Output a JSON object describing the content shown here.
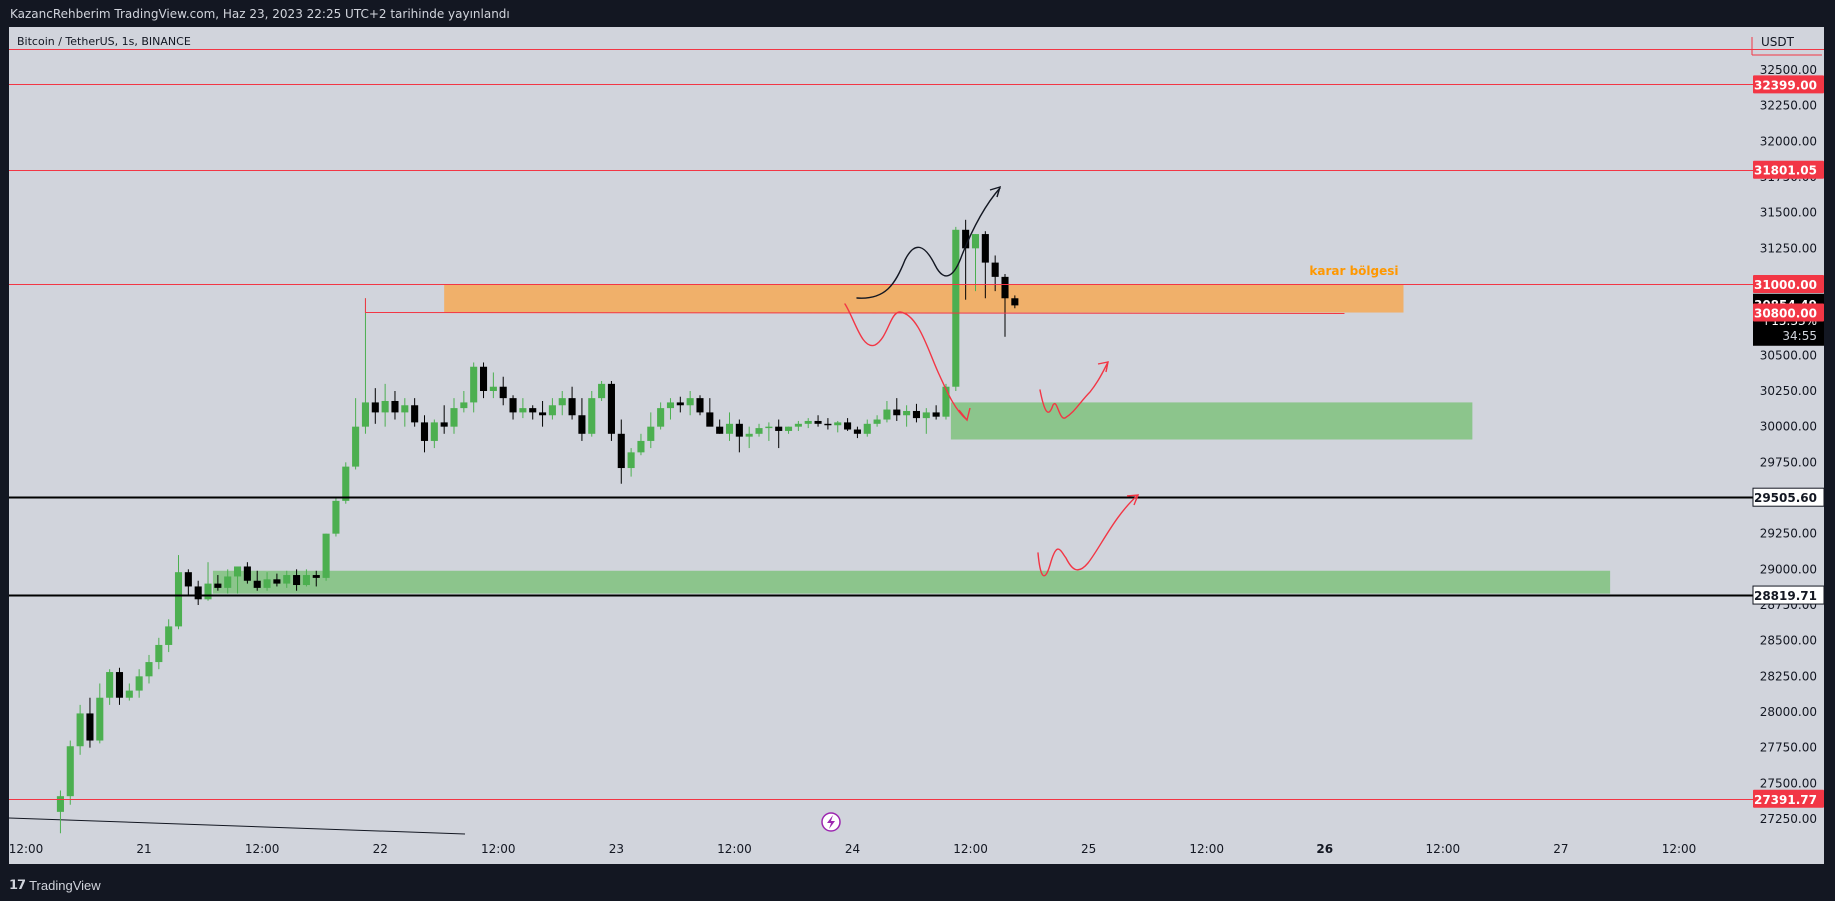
{
  "header": {
    "publish_line": "KazancRehberim TradingView.com, Haz 23, 2023 22:25 UTC+2 tarihinde yayınlandı"
  },
  "footer": {
    "brand": "TradingView"
  },
  "colors": {
    "background": "#d1d4dc",
    "frame": "#131722",
    "up": "#4caf50",
    "down": "#000000",
    "resistance": "#f23645",
    "support": "#000000",
    "orange_zone": "#f0b06a",
    "green_zone": "#8cc58c",
    "zone_label": "#ff9800"
  },
  "chart_data": {
    "type": "candlestick",
    "title": "Bitcoin / TetherUS, 1s, BINANCE",
    "currency": "USDT",
    "ylim": [
      27150,
      32700
    ],
    "y_ticks": [
      27250,
      27500,
      27750,
      28000,
      28250,
      28500,
      28750,
      29000,
      29250,
      29500,
      29750,
      30000,
      30250,
      30500,
      30750,
      31000,
      31250,
      31500,
      31750,
      32000,
      32250,
      32500
    ],
    "y_tick_labels": [
      "27250.00",
      "27500.00",
      "27750.00",
      "28000.00",
      "28250.00",
      "28500.00",
      "28750.00",
      "29000.00",
      "29250.00",
      "29500.00",
      "29750.00",
      "30000.00",
      "30250.00",
      "30500.00",
      "30750.00",
      "31000.00",
      "31250.00",
      "31500.00",
      "31750.00",
      "32000.00",
      "32250.00",
      "32500.00"
    ],
    "x_tick_labels": [
      "12:00",
      "21",
      "12:00",
      "22",
      "12:00",
      "23",
      "12:00",
      "24",
      "12:00",
      "25",
      "12:00",
      "26",
      "12:00",
      "27",
      "12:00"
    ],
    "x_ticks_hours": [
      12,
      24,
      36,
      48,
      60,
      72,
      84,
      96,
      108,
      120,
      132,
      144,
      156,
      168,
      180
    ],
    "x_range_hours": [
      12,
      186
    ],
    "candle_interval_hours": 1,
    "first_candle_hour": 15.5,
    "candles": [
      [
        27300,
        27450,
        27150,
        27410
      ],
      [
        27410,
        27800,
        27350,
        27760
      ],
      [
        27760,
        28050,
        27700,
        27990
      ],
      [
        27990,
        28100,
        27750,
        27800
      ],
      [
        27800,
        28200,
        27780,
        28100
      ],
      [
        28100,
        28300,
        28050,
        28280
      ],
      [
        28280,
        28310,
        28050,
        28100
      ],
      [
        28100,
        28200,
        28080,
        28150
      ],
      [
        28150,
        28300,
        28100,
        28250
      ],
      [
        28250,
        28400,
        28200,
        28350
      ],
      [
        28350,
        28520,
        28300,
        28470
      ],
      [
        28470,
        28650,
        28420,
        28600
      ],
      [
        28600,
        29100,
        28580,
        28980
      ],
      [
        28980,
        29000,
        28820,
        28880
      ],
      [
        28880,
        28920,
        28750,
        28790
      ],
      [
        28790,
        29050,
        28780,
        28900
      ],
      [
        28900,
        28960,
        28850,
        28870
      ],
      [
        28870,
        29000,
        28830,
        28950
      ],
      [
        28950,
        29000,
        28830,
        29020
      ],
      [
        29020,
        29050,
        28900,
        28920
      ],
      [
        28920,
        28990,
        28850,
        28870
      ],
      [
        28870,
        28980,
        28850,
        28930
      ],
      [
        28930,
        28970,
        28880,
        28900
      ],
      [
        28900,
        28990,
        28870,
        28960
      ],
      [
        28960,
        29000,
        28850,
        28890
      ],
      [
        28890,
        29000,
        28880,
        28960
      ],
      [
        28960,
        28990,
        28880,
        28940
      ],
      [
        28940,
        29250,
        28920,
        29250
      ],
      [
        29250,
        29500,
        29230,
        29480
      ],
      [
        29480,
        29750,
        29460,
        29720
      ],
      [
        29720,
        30200,
        29700,
        30000
      ],
      [
        30000,
        30900,
        29950,
        30170
      ],
      [
        30170,
        30270,
        30020,
        30100
      ],
      [
        30100,
        30300,
        30000,
        30180
      ],
      [
        30180,
        30250,
        30050,
        30100
      ],
      [
        30100,
        30200,
        30000,
        30150
      ],
      [
        30150,
        30200,
        30000,
        30030
      ],
      [
        30030,
        30080,
        29820,
        29900
      ],
      [
        29900,
        30050,
        29850,
        30030
      ],
      [
        30030,
        30150,
        29950,
        30000
      ],
      [
        30000,
        30200,
        29950,
        30130
      ],
      [
        30130,
        30250,
        30100,
        30170
      ],
      [
        30170,
        30450,
        30100,
        30420
      ],
      [
        30420,
        30450,
        30200,
        30250
      ],
      [
        30250,
        30380,
        30200,
        30280
      ],
      [
        30280,
        30350,
        30150,
        30200
      ],
      [
        30200,
        30220,
        30050,
        30100
      ],
      [
        30100,
        30200,
        30060,
        30130
      ],
      [
        30130,
        30150,
        30050,
        30100
      ],
      [
        30100,
        30180,
        30000,
        30080
      ],
      [
        30080,
        30200,
        30050,
        30150
      ],
      [
        30150,
        30250,
        30080,
        30200
      ],
      [
        30200,
        30280,
        30050,
        30080
      ],
      [
        30080,
        30200,
        29900,
        29950
      ],
      [
        29950,
        30250,
        29930,
        30200
      ],
      [
        30200,
        30320,
        30180,
        30300
      ],
      [
        30300,
        30320,
        29900,
        29950
      ],
      [
        29950,
        30050,
        29600,
        29710
      ],
      [
        29710,
        29850,
        29650,
        29820
      ],
      [
        29820,
        29950,
        29800,
        29900
      ],
      [
        29900,
        30100,
        29850,
        30000
      ],
      [
        30000,
        30170,
        29980,
        30130
      ],
      [
        30130,
        30200,
        30050,
        30170
      ],
      [
        30170,
        30210,
        30100,
        30150
      ],
      [
        30150,
        30250,
        30080,
        30200
      ],
      [
        30200,
        30220,
        30080,
        30100
      ],
      [
        30100,
        30200,
        30050,
        30000
      ],
      [
        30000,
        30050,
        29950,
        29950
      ],
      [
        29950,
        30100,
        29900,
        30020
      ],
      [
        30020,
        30050,
        29820,
        29930
      ],
      [
        29930,
        30000,
        29850,
        29950
      ],
      [
        29950,
        30020,
        29930,
        29990
      ],
      [
        29990,
        30030,
        29900,
        30000
      ],
      [
        30000,
        30050,
        29850,
        29970
      ],
      [
        29970,
        30000,
        29950,
        30000
      ],
      [
        30000,
        30040,
        29970,
        30020
      ],
      [
        30020,
        30060,
        29990,
        30040
      ],
      [
        30040,
        30080,
        30000,
        30020
      ],
      [
        30020,
        30060,
        29980,
        30010
      ],
      [
        30010,
        30040,
        29960,
        30030
      ],
      [
        30030,
        30060,
        29970,
        29980
      ],
      [
        29980,
        30000,
        29920,
        29950
      ],
      [
        29950,
        30050,
        29930,
        30020
      ],
      [
        30020,
        30080,
        30000,
        30050
      ],
      [
        30050,
        30180,
        30030,
        30120
      ],
      [
        30120,
        30200,
        30040,
        30080
      ],
      [
        30080,
        30150,
        30000,
        30110
      ],
      [
        30110,
        30160,
        30030,
        30060
      ],
      [
        30060,
        30130,
        29950,
        30100
      ],
      [
        30100,
        30150,
        30050,
        30070
      ],
      [
        30070,
        30300,
        30050,
        30280
      ],
      [
        30280,
        31400,
        30250,
        31380
      ],
      [
        31380,
        31450,
        30890,
        31250
      ],
      [
        31250,
        31350,
        30950,
        31350
      ],
      [
        31350,
        31370,
        30900,
        31150
      ],
      [
        31150,
        31200,
        30950,
        31050
      ],
      [
        31050,
        31070,
        30630,
        30900
      ],
      [
        30900,
        30920,
        30830,
        30850
      ]
    ],
    "price_lines": [
      {
        "value": 32650,
        "type": "resistance",
        "label": ""
      },
      {
        "value": 32399.0,
        "type": "resistance",
        "label": "32399.00"
      },
      {
        "value": 31801.05,
        "type": "resistance",
        "label": "31801.05"
      },
      {
        "value": 31000.0,
        "type": "resistance",
        "label": "31000.00"
      },
      {
        "value": 29505.6,
        "type": "support",
        "label": "29505.60"
      },
      {
        "value": 28819.71,
        "type": "support",
        "label": "28819.71"
      },
      {
        "value": 27391.77,
        "type": "resistance",
        "label": "27391.77"
      }
    ],
    "last_price": {
      "value": 30854.49,
      "label": "30854.49",
      "change": "+15.33%",
      "countdown": "34:55"
    },
    "highlight_price": {
      "value": 30800.0,
      "label": "30800.00"
    },
    "zones": [
      {
        "from_hour": 54.5,
        "to_hour": 152,
        "low": 30800,
        "high": 31000,
        "color": "orange",
        "label": "karar bölgesi"
      },
      {
        "from_hour": 106,
        "to_hour": 159,
        "low": 29910,
        "high": 30170,
        "color": "green",
        "label": ""
      },
      {
        "from_hour": 31,
        "to_hour": 173,
        "low": 28830,
        "high": 28990,
        "color": "green",
        "label": ""
      }
    ]
  }
}
